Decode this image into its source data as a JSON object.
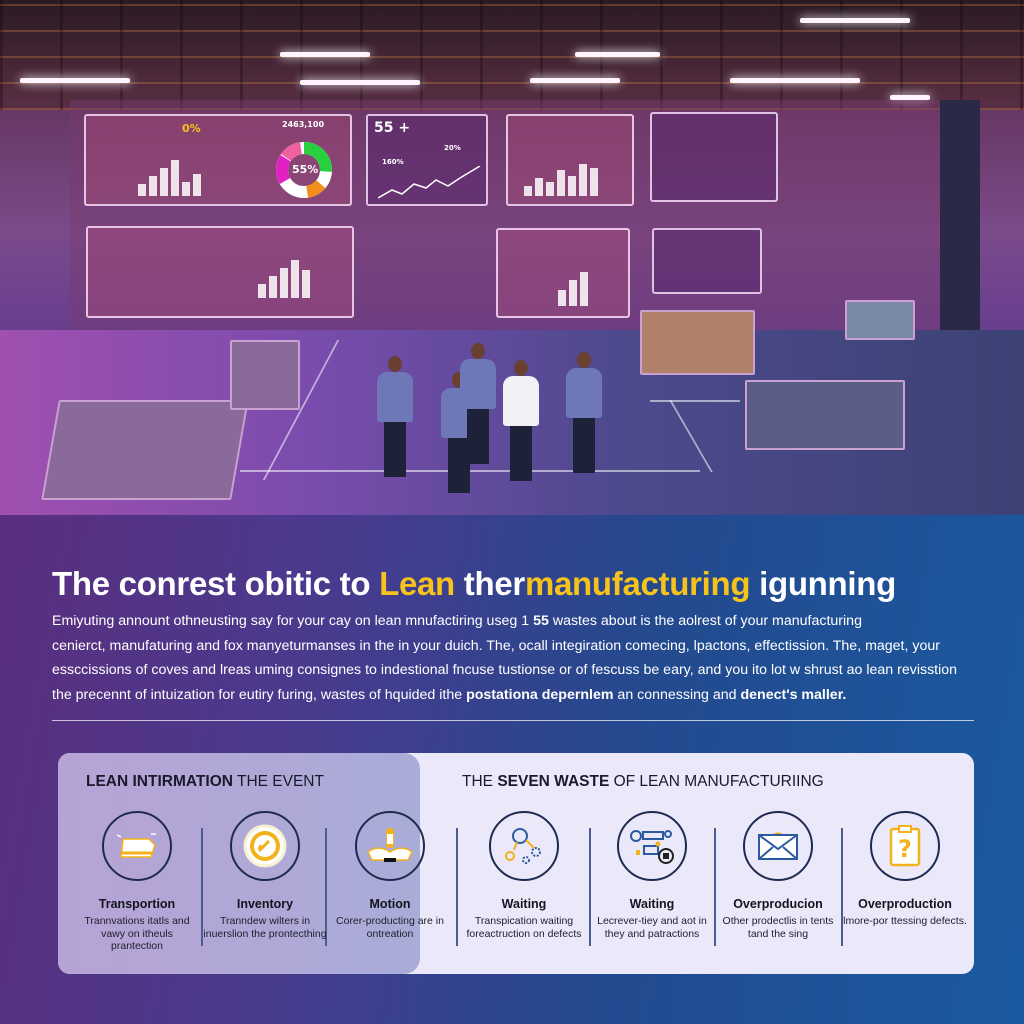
{
  "scene": {
    "dashboard_1": {
      "donut_label": "55%",
      "counter": "2463,100",
      "percent_badge": "0%"
    },
    "dashboard_2": {
      "headline": "55 +",
      "stat_a": "160%",
      "stat_b": "20%"
    },
    "donut_colors": [
      "#28d040",
      "#ffffff",
      "#f0901a",
      "#ffffff",
      "#e020c0",
      "#f060a0"
    ]
  },
  "headline": {
    "part1": "The conrest obitic to ",
    "highlight1": "Lean",
    "part2": " ther",
    "highlight2": "manufacturing",
    "part3": " igunning"
  },
  "intro": {
    "line1_a": "Emiyuting annount othneusting say for your cay on lean mnufactiring useg 1 ",
    "line1_bold": "55",
    "line1_b": " wastes about is the aolrest of your manufacturing",
    "line2": "cenierct, manufaturing and fox manyeturmanses in the in your duich. The, ocall integiration comecing, lpactons, effectission. The, maget, your",
    "line3": "essccissions of coves and lreas uming consignes to indestional fncuse tustionse or of fescuss be eary, and you ito lot w shrust ao lean revisstion",
    "line4_a": "the precennt of intuization for eutiry furing, wastes of hquided ithe ",
    "line4_bold1": "postationa depernlem",
    "line4_b": " an connessing and ",
    "line4_bold2": "denect's maller."
  },
  "card": {
    "left_title_bold": "LEAN INTIRMATION",
    "left_title_rest": " THE EVENT",
    "right_title_pre": "THE ",
    "right_title_bold": "SEVEN WASTE",
    "right_title_rest": " OF LEAN MANUFACTURIING",
    "items": [
      {
        "icon": "truck-icon",
        "name": "Transportion",
        "desc": "Trannvations itatls and vawy on itheuls prantection"
      },
      {
        "icon": "badge-check-icon",
        "name": "Inventory",
        "desc": "Tranndew wilters in inuerslion the prontecthing"
      },
      {
        "icon": "robot-arm-icon",
        "name": "Motion",
        "desc": "Corer-producting are in ontreation"
      },
      {
        "icon": "network-gears-icon",
        "name": "Waiting",
        "desc": "Transpication waiting foreactruction on defects"
      },
      {
        "icon": "process-flow-icon",
        "name": "Waiting",
        "desc": "Lecrever-tiey and aot in they and patractions"
      },
      {
        "icon": "envelope-icon",
        "name": "Overproducion",
        "desc": "Other prodectlis in tents tand the sing"
      },
      {
        "icon": "question-clipboard-icon",
        "name": "Overproduction",
        "desc": "lmore-por ttessing defects."
      }
    ],
    "accent": "#f2b21c",
    "icon_stroke": "#1e2a50"
  }
}
